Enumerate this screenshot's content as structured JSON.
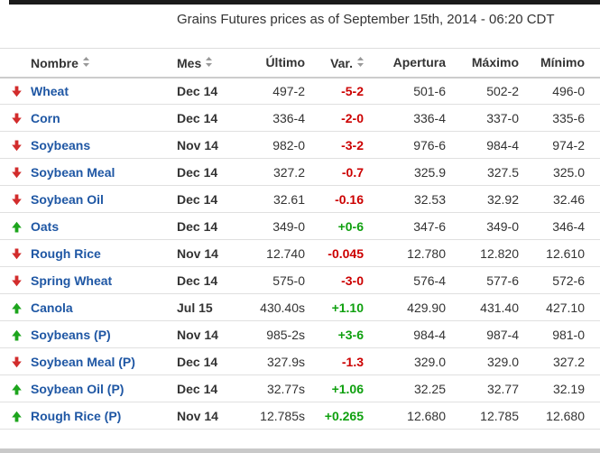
{
  "header": {
    "title": "Grains Futures prices as of September 15th, 2014 - 06:20 CDT"
  },
  "table": {
    "columns": [
      {
        "label": "Nombre",
        "sortable": true
      },
      {
        "label": "Mes",
        "sortable": true
      },
      {
        "label": "Último",
        "sortable": false
      },
      {
        "label": "Var.",
        "sortable": true
      },
      {
        "label": "Apertura",
        "sortable": false
      },
      {
        "label": "Máximo",
        "sortable": false
      },
      {
        "label": "Mínimo",
        "sortable": false
      }
    ],
    "rows": [
      {
        "direction": "down",
        "name": "Wheat",
        "month": "Dec 14",
        "last": "497-2",
        "change": "-5-2",
        "open": "501-6",
        "high": "502-2",
        "low": "496-0"
      },
      {
        "direction": "down",
        "name": "Corn",
        "month": "Dec 14",
        "last": "336-4",
        "change": "-2-0",
        "open": "336-4",
        "high": "337-0",
        "low": "335-6"
      },
      {
        "direction": "down",
        "name": "Soybeans",
        "month": "Nov 14",
        "last": "982-0",
        "change": "-3-2",
        "open": "976-6",
        "high": "984-4",
        "low": "974-2"
      },
      {
        "direction": "down",
        "name": "Soybean Meal",
        "month": "Dec 14",
        "last": "327.2",
        "change": "-0.7",
        "open": "325.9",
        "high": "327.5",
        "low": "325.0"
      },
      {
        "direction": "down",
        "name": "Soybean Oil",
        "month": "Dec 14",
        "last": "32.61",
        "change": "-0.16",
        "open": "32.53",
        "high": "32.92",
        "low": "32.46"
      },
      {
        "direction": "up",
        "name": "Oats",
        "month": "Dec 14",
        "last": "349-0",
        "change": "+0-6",
        "open": "347-6",
        "high": "349-0",
        "low": "346-4"
      },
      {
        "direction": "down",
        "name": "Rough Rice",
        "month": "Nov 14",
        "last": "12.740",
        "change": "-0.045",
        "open": "12.780",
        "high": "12.820",
        "low": "12.610"
      },
      {
        "direction": "down",
        "name": "Spring Wheat",
        "month": "Dec 14",
        "last": "575-0",
        "change": "-3-0",
        "open": "576-4",
        "high": "577-6",
        "low": "572-6"
      },
      {
        "direction": "up",
        "name": "Canola",
        "month": "Jul 15",
        "last": "430.40s",
        "change": "+1.10",
        "open": "429.90",
        "high": "431.40",
        "low": "427.10"
      },
      {
        "direction": "up",
        "name": "Soybeans (P)",
        "month": "Nov 14",
        "last": "985-2s",
        "change": "+3-6",
        "open": "984-4",
        "high": "987-4",
        "low": "981-0"
      },
      {
        "direction": "down",
        "name": "Soybean Meal (P)",
        "month": "Dec 14",
        "last": "327.9s",
        "change": "-1.3",
        "open": "329.0",
        "high": "329.0",
        "low": "327.2"
      },
      {
        "direction": "up",
        "name": "Soybean Oil (P)",
        "month": "Dec 14",
        "last": "32.77s",
        "change": "+1.06",
        "open": "32.25",
        "high": "32.77",
        "low": "32.19"
      },
      {
        "direction": "up",
        "name": "Rough Rice (P)",
        "month": "Nov 14",
        "last": "12.785s",
        "change": "+0.265",
        "open": "12.680",
        "high": "12.785",
        "low": "12.680"
      }
    ]
  },
  "colors": {
    "positive_change": "#0fa00f",
    "negative_change": "#cc0000",
    "up_arrow": "#1da51d",
    "down_arrow": "#d22c2c",
    "commodity_link": "#1f57a4",
    "sort_icon": "#999999",
    "top_bar": "#1b1b1b"
  },
  "icons": {
    "up": "up-arrow-icon",
    "down": "down-arrow-icon",
    "sort": "sort-icon"
  }
}
